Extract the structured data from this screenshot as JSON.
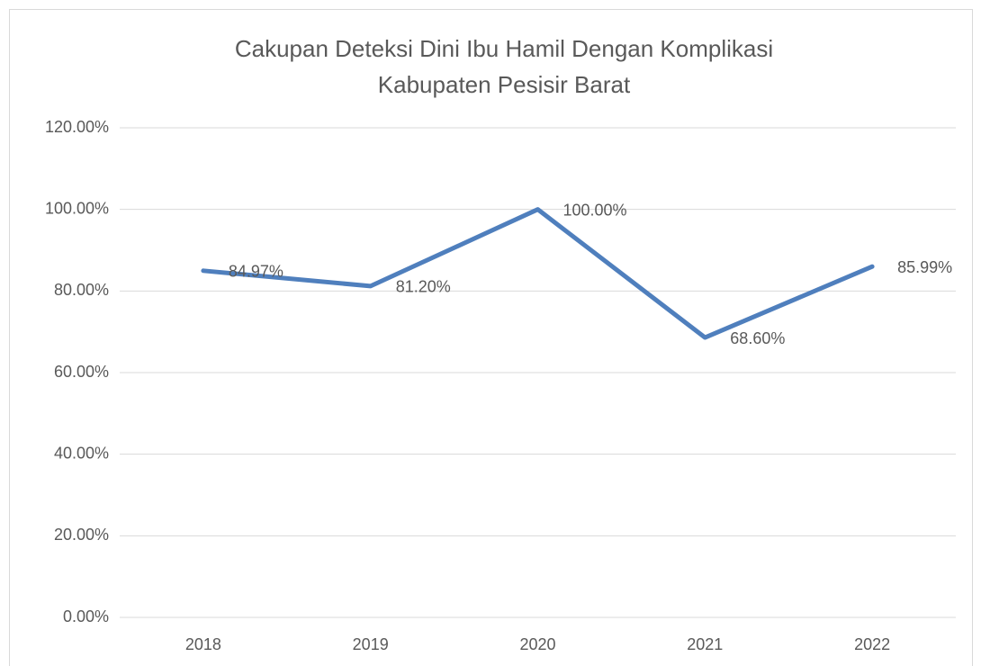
{
  "chart_data": {
    "type": "line",
    "title": [
      "Cakupan Deteksi Dini Ibu Hamil Dengan Komplikasi",
      "Kabupaten Pesisir Barat"
    ],
    "categories": [
      "2018",
      "2019",
      "2020",
      "2021",
      "2022"
    ],
    "series": [
      {
        "color": "#4f7fbd",
        "values": [
          84.97,
          81.2,
          100,
          68.6,
          85.99
        ],
        "value_labels": [
          "84.97%",
          "81.20%",
          "100.00%",
          "68.60%",
          "85.99%"
        ]
      }
    ],
    "ylim": [
      0,
      120
    ],
    "yticks": [
      {
        "value": 0,
        "label": "0.00%"
      },
      {
        "value": 20,
        "label": "20.00%"
      },
      {
        "value": 40,
        "label": "40.00%"
      },
      {
        "value": 60,
        "label": "60.00%"
      },
      {
        "value": 80,
        "label": "80.00%"
      },
      {
        "value": 100,
        "label": "100.00%"
      },
      {
        "value": 120,
        "label": "120.00%"
      }
    ],
    "grid": true
  }
}
